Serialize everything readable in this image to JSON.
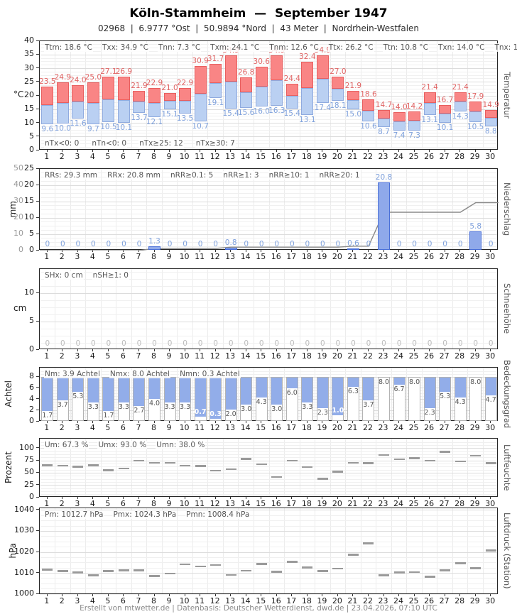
{
  "header": {
    "title": "Köln-Stammheim  —  September 1947",
    "subtitle": "02968  |  6.9777 °Ost  |  50.9894 °Nord  |  43 Meter  |  Nordrhein-Westfalen"
  },
  "footer": {
    "text": "Erstellt von mtwetter.de | Datenbasis: Deutscher Wetterdienst, dwd.de | 23.04.2026, 07:10 UTC"
  },
  "days": [
    1,
    2,
    3,
    4,
    5,
    6,
    7,
    8,
    9,
    10,
    11,
    12,
    13,
    14,
    15,
    16,
    17,
    18,
    19,
    20,
    21,
    22,
    23,
    24,
    25,
    26,
    27,
    28,
    29,
    30
  ],
  "colors": {
    "temp_max_fill": "#f98585",
    "temp_max_border": "#e85f5f",
    "temp_max_label": "#e06565",
    "temp_min_fill": "#bad0f2",
    "temp_min_border": "#90abdf",
    "temp_min_label": "#7fa1dc",
    "precip_fill": "#8fa9ea",
    "precip_border": "#4a70d8",
    "precip_label": "#7fa1dc",
    "cloud_fill": "#92ade9",
    "cloud_border": "#b3b3b3",
    "cloud_label": "#555555",
    "dash": "#9a9a9a",
    "cum_line": "#8a8a8a",
    "zero_snow_label": "#bcbcbc",
    "grid_major": "#dcdcdc",
    "grid_minor": "#f0f0f0",
    "grid_vert": "#ececec",
    "gray_axis": "#999999"
  },
  "chart_data": [
    {
      "panel": "temperature",
      "type": "bar",
      "ylabel": "°C",
      "right_label": "Temperatur",
      "ylim": [
        0,
        40
      ],
      "yticks": [
        0,
        5,
        10,
        15,
        20,
        25,
        30,
        35,
        40
      ],
      "stats": [
        "Ttm: 18.6 °C",
        "Txx: 34.9 °C",
        "Tnn: 7.3 °C",
        "Txm: 24.1 °C",
        "Tnm: 12.6 °C",
        "Ttx: 26.2 °C",
        "Ttn: 10.8 °C",
        "Txn: 14.0 °C",
        "Tnx: 19.1 °C"
      ],
      "counts": [
        "nTx<0: 0",
        "nTn<0: 0",
        "nTx≥25: 12",
        "nTx≥30: 7"
      ],
      "tmax": [
        23.5,
        24.9,
        24.0,
        25.0,
        27.1,
        26.9,
        21.9,
        22.9,
        21.0,
        22.9,
        30.9,
        31.7,
        34.9,
        26.8,
        30.6,
        34.9,
        24.4,
        32.4,
        34.9,
        27.0,
        21.9,
        18.6,
        14.7,
        14.0,
        14.2,
        21.4,
        16.7,
        21.4,
        17.9,
        14.9
      ],
      "tmin": [
        9.6,
        10.0,
        11.6,
        9.7,
        10.5,
        10.1,
        13.7,
        12.1,
        15.1,
        13.5,
        10.7,
        19.1,
        15.4,
        15.6,
        16.0,
        16.3,
        15.4,
        13.1,
        17.4,
        18.1,
        15.0,
        10.6,
        8.7,
        7.4,
        7.3,
        13.1,
        10.1,
        14.3,
        10.5,
        8.8
      ],
      "tmid": [
        16.6,
        17.5,
        17.8,
        17.4,
        18.8,
        18.5,
        17.8,
        17.5,
        18.1,
        18.2,
        20.8,
        24.6,
        25.2,
        21.2,
        23.3,
        25.6,
        19.9,
        22.8,
        26.2,
        22.6,
        18.5,
        14.6,
        11.7,
        10.7,
        10.8,
        17.3,
        13.4,
        17.9,
        14.2,
        11.9
      ]
    },
    {
      "panel": "precipitation",
      "type": "bar",
      "ylabel": "mm",
      "right_label": "Niederschlag",
      "ylim": [
        0,
        25
      ],
      "ylim_right": [
        0,
        50
      ],
      "yticks": [
        0,
        5,
        10,
        15,
        20,
        25
      ],
      "yticks_right": [
        0,
        10,
        20,
        30,
        40,
        50
      ],
      "stats": [
        "RRs: 29.3 mm",
        "RRx: 20.8 mm",
        "nRR≥0.1: 5",
        "nRR≥1: 3",
        "nRR≥10: 1",
        "nRR≥20: 1"
      ],
      "values": [
        0,
        0,
        0,
        0,
        0,
        0,
        0,
        1.3,
        0,
        0,
        0,
        0,
        0.8,
        0,
        0,
        0,
        0,
        0,
        0,
        0,
        0.6,
        0,
        20.8,
        0,
        0,
        0,
        0,
        0,
        5.8,
        0
      ],
      "cumulative": [
        0,
        0,
        0,
        0,
        0,
        0,
        0,
        1.3,
        1.3,
        1.3,
        1.3,
        1.3,
        2.1,
        2.1,
        2.1,
        2.1,
        2.1,
        2.1,
        2.1,
        2.1,
        2.7,
        2.7,
        23.5,
        23.5,
        23.5,
        23.5,
        23.5,
        23.5,
        29.3,
        29.3
      ]
    },
    {
      "panel": "snow",
      "type": "bar",
      "ylabel": "cm",
      "right_label": "Schneehöhe",
      "ylim": [
        0,
        14.25
      ],
      "yticks": [
        0,
        5,
        10
      ],
      "stats": [
        "SHx: 0 cm",
        "nSH≥1: 0"
      ],
      "values": [
        0,
        0,
        0,
        0,
        0,
        0,
        0,
        0,
        0,
        0,
        0,
        0,
        0,
        0,
        0,
        0,
        0,
        0,
        0,
        0,
        0,
        0,
        0,
        0,
        0,
        0,
        0,
        0,
        0,
        0
      ]
    },
    {
      "panel": "cloud",
      "type": "bar",
      "ylabel": "Achtel",
      "right_label": "Bedeckungsgrad",
      "ylim": [
        0,
        8
      ],
      "yticks": [
        0,
        2,
        4,
        6,
        8
      ],
      "stats": [
        "Nm: 3.9 Achtel",
        "Nmx: 8.0 Achtel",
        "Nmn: 0.3 Achtel"
      ],
      "values": [
        1.7,
        3.7,
        5.3,
        3.3,
        1.7,
        3.3,
        2.7,
        4.0,
        3.3,
        3.3,
        0.7,
        0.3,
        2.0,
        3.0,
        4.3,
        3.0,
        6.0,
        3.3,
        2.3,
        1.0,
        6.3,
        3.7,
        8.0,
        6.7,
        8.0,
        2.3,
        5.3,
        4.3,
        8.0,
        4.7
      ]
    },
    {
      "panel": "humidity",
      "type": "scatter",
      "ylabel": "Prozent",
      "right_label": "Luftfeuchte",
      "ylim": [
        0,
        100
      ],
      "yticks": [
        0,
        25,
        50,
        75,
        100
      ],
      "stats": [
        "Um: 67.3 %",
        "Umx: 93.0 %",
        "Umn: 38.0 %"
      ],
      "values": [
        66,
        65,
        63,
        66,
        56,
        59,
        75,
        71,
        71,
        65,
        64,
        55,
        58,
        79,
        68,
        42,
        75,
        62,
        38,
        53,
        71,
        70,
        87,
        78,
        80,
        75,
        93,
        74,
        85,
        70
      ]
    },
    {
      "panel": "pressure",
      "type": "scatter",
      "ylabel": "hPa",
      "right_label": "Luftdruck (Station)",
      "ylim": [
        1000,
        1040
      ],
      "yticks": [
        1000,
        1010,
        1020,
        1030,
        1040
      ],
      "stats": [
        "Pm: 1012.7 hPa",
        "Pmx: 1024.3 hPa",
        "Pmn: 1008.4 hPa"
      ],
      "values": [
        1011.8,
        1011.1,
        1010.4,
        1009.0,
        1011.1,
        1011.4,
        1011.4,
        1008.7,
        1009.8,
        1014.3,
        1013.3,
        1014.0,
        1009.2,
        1011.2,
        1014.4,
        1010.7,
        1015.4,
        1012.7,
        1011.0,
        1012.2,
        1018.8,
        1024.3,
        1009.0,
        1010.3,
        1010.6,
        1008.4,
        1011.4,
        1014.7,
        1012.4,
        1020.8
      ]
    }
  ]
}
